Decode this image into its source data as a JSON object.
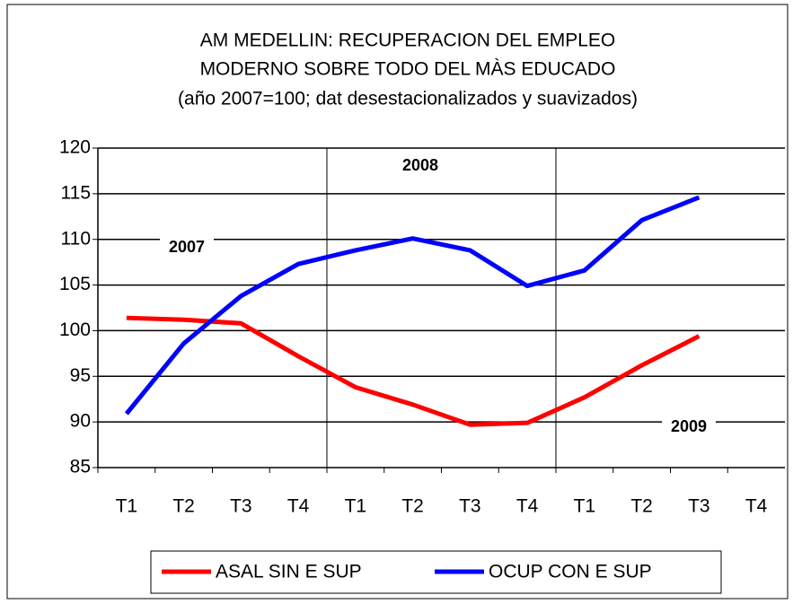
{
  "chart_data": {
    "type": "line",
    "title": [
      "AM MEDELLIN:  RECUPERACION DEL EMPLEO",
      "MODERNO SOBRE TODO DEL MÀS EDUCADO",
      "(año 2007=100; dat desestacionalizados y suavizados)"
    ],
    "categories": [
      "T1",
      "T2",
      "T3",
      "T4",
      "T1",
      "T2",
      "T3",
      "T4",
      "T1",
      "T2",
      "T3",
      "T4"
    ],
    "series": [
      {
        "name": "ASAL SIN E SUP",
        "color": "#ff0000",
        "values": [
          101.4,
          101.2,
          100.8,
          97.2,
          93.8,
          91.9,
          89.7,
          89.9,
          92.7,
          96.2,
          99.4,
          null
        ]
      },
      {
        "name": "OCUP CON E SUP",
        "color": "#0000ff",
        "values": [
          90.9,
          98.6,
          103.8,
          107.3,
          108.8,
          110.1,
          108.8,
          104.9,
          106.6,
          112.1,
          114.6,
          null
        ]
      }
    ],
    "annotations": [
      "2007",
      "2008",
      "2009"
    ],
    "ylim": [
      85,
      120
    ],
    "yticks": [
      85,
      90,
      95,
      100,
      105,
      110,
      115,
      120
    ],
    "grid": true,
    "legend": "bottom"
  }
}
